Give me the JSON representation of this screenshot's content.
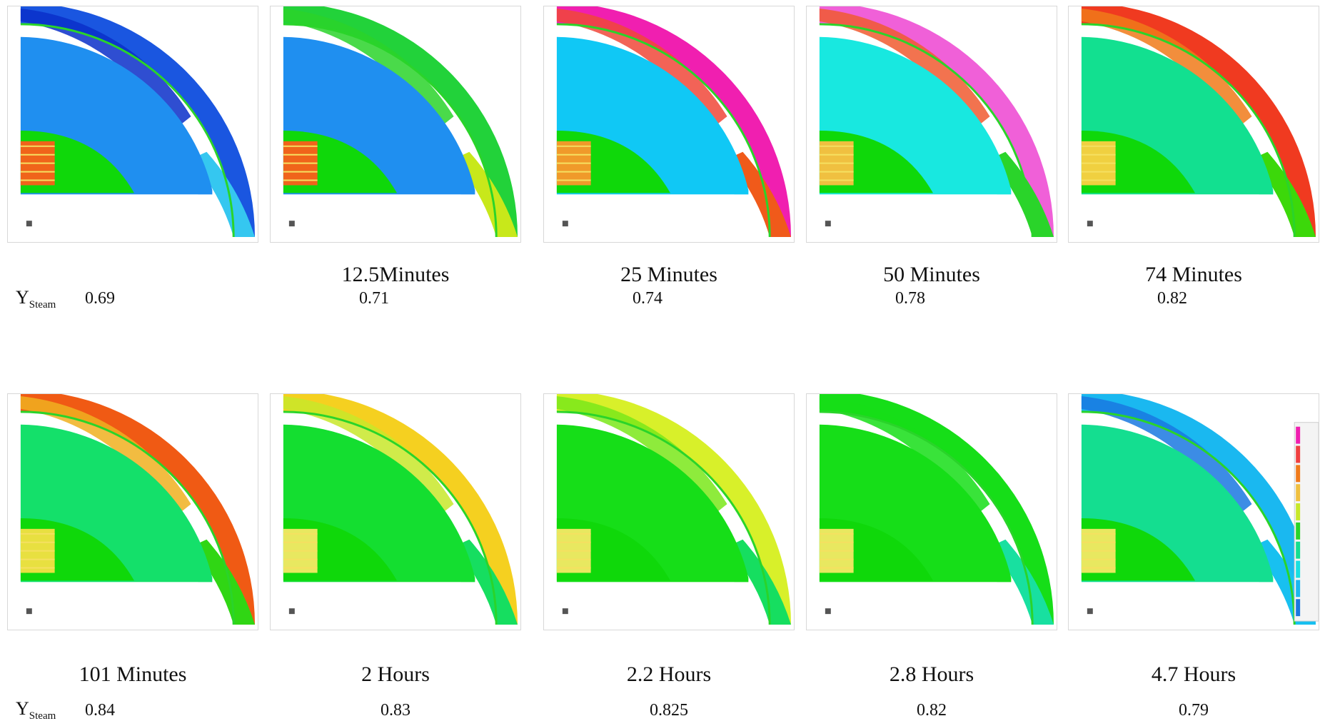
{
  "y_label": {
    "main": "Y",
    "sub": "Steam"
  },
  "rows": [
    {
      "panels": [
        {
          "caption": "",
          "value": "0.69",
          "colors": {
            "outer": "#1a56e0",
            "inner": "#0a2fc9",
            "body": "#1f8ff0",
            "edge": "#35c7f0",
            "nose": "#0fd80a",
            "hot": "#f0641a"
          }
        },
        {
          "caption": "12.5Minutes",
          "value": "0.71",
          "colors": {
            "outer": "#22d23a",
            "inner": "#2ad42a",
            "body": "#1f8ff0",
            "edge": "#c8e81a",
            "nose": "#0fd80a",
            "hot": "#f0641a"
          }
        },
        {
          "caption": "25 Minutes",
          "value": "0.74",
          "colors": {
            "outer": "#f01fb0",
            "inner": "#f0483a",
            "body": "#10c8f5",
            "edge": "#f05a1a",
            "nose": "#0fd80a",
            "hot": "#f09a2a"
          }
        },
        {
          "caption": "50 Minutes",
          "value": "0.78",
          "colors": {
            "outer": "#f060d8",
            "inner": "#f05a30",
            "body": "#18e8e0",
            "edge": "#2ad42a",
            "nose": "#0fd80a",
            "hot": "#f0c040"
          }
        },
        {
          "caption": "74 Minutes",
          "value": "0.82",
          "colors": {
            "outer": "#f03a20",
            "inner": "#f07a1a",
            "body": "#12e090",
            "edge": "#3cd80a",
            "nose": "#0fd80a",
            "hot": "#f0d040"
          }
        }
      ]
    },
    {
      "panels": [
        {
          "caption": "101 Minutes",
          "value": "0.84",
          "colors": {
            "outer": "#f05a14",
            "inner": "#f0b020",
            "body": "#14e06a",
            "edge": "#30d614",
            "nose": "#0fd80a",
            "hot": "#e8e040"
          }
        },
        {
          "caption": "2 Hours",
          "value": "0.83",
          "colors": {
            "outer": "#f5d020",
            "inner": "#c8e82a",
            "body": "#14de30",
            "edge": "#16de60",
            "nose": "#0fd80a",
            "hot": "#e8e860"
          }
        },
        {
          "caption": "2.2 Hours",
          "value": "0.825",
          "colors": {
            "outer": "#d8f02a",
            "inner": "#7ae81a",
            "body": "#16de18",
            "edge": "#16de60",
            "nose": "#0fd80a",
            "hot": "#e8e860"
          }
        },
        {
          "caption": "2.8 Hours",
          "value": "0.82",
          "colors": {
            "outer": "#16de18",
            "inner": "#16de18",
            "body": "#16de18",
            "edge": "#18e0a0",
            "nose": "#0fd80a",
            "hot": "#e8e860"
          }
        },
        {
          "caption": "4.7 Hours",
          "value": "0.79",
          "colors": {
            "outer": "#1ab8f0",
            "inner": "#1a78e0",
            "body": "#14de90",
            "edge": "#18c0f0",
            "nose": "#0fd80a",
            "hot": "#e8e860"
          }
        }
      ]
    }
  ]
}
